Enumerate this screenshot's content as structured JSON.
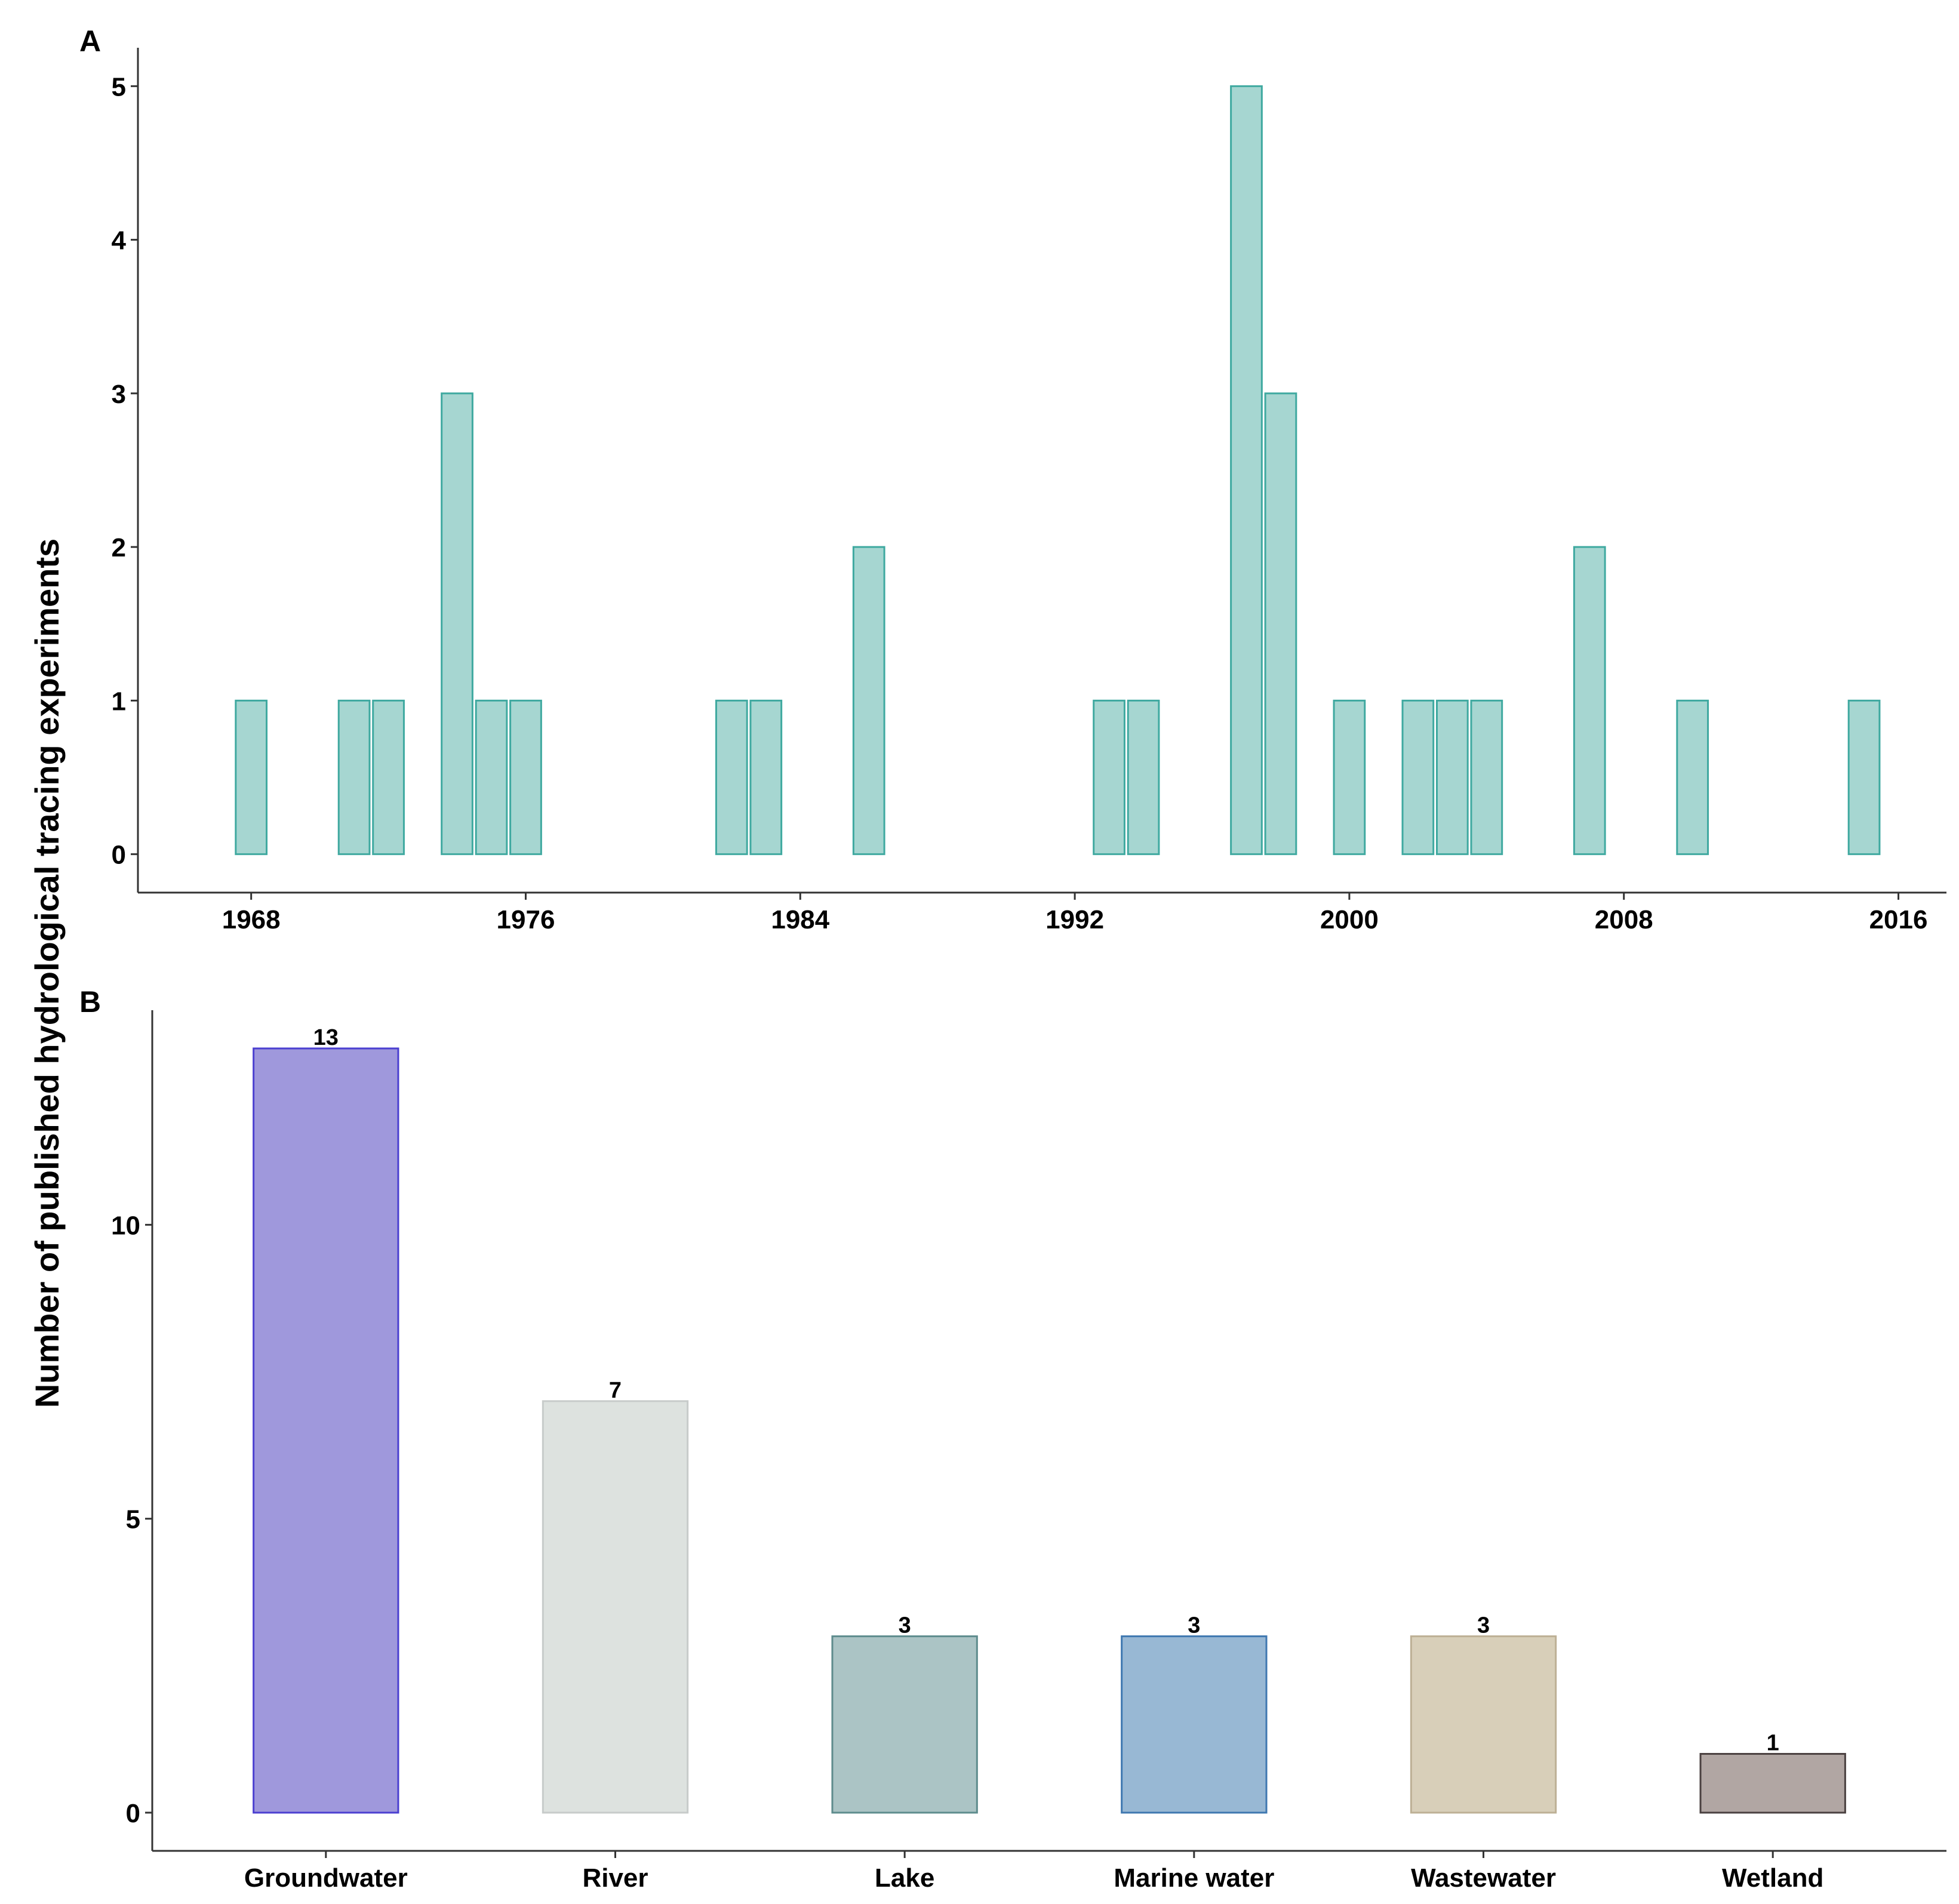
{
  "y_axis_title": "Number of published hydrological tracing experiments",
  "chart_data": [
    {
      "panel": "A",
      "type": "bar",
      "xlabel": "",
      "ylabel": "Number of published hydrological tracing experiments",
      "x": [
        1968,
        1971,
        1972,
        1974,
        1975,
        1976,
        1982,
        1983,
        1986,
        1993,
        1994,
        1997,
        1998,
        2000,
        2002,
        2003,
        2004,
        2007,
        2010,
        2015
      ],
      "values": [
        1,
        1,
        1,
        3,
        1,
        1,
        1,
        1,
        2,
        1,
        1,
        5,
        3,
        1,
        1,
        1,
        1,
        2,
        1,
        1
      ],
      "xlim": [
        1964.7,
        2017.4
      ],
      "ylim": [
        -0.25,
        5.25
      ],
      "x_ticks": [
        1968,
        1976,
        1984,
        1992,
        2000,
        2008,
        2016
      ],
      "y_ticks": [
        0,
        1,
        2,
        3,
        4,
        5
      ],
      "fill_color": "#a6d6d1",
      "stroke_color": "#3fa9a0",
      "grid": false
    },
    {
      "panel": "B",
      "type": "bar",
      "xlabel": "",
      "ylabel": "Number of published hydrological tracing experiments",
      "categories": [
        "Groundwater",
        "River",
        "Lake",
        "Marine water",
        "Wastewater",
        "Wetland"
      ],
      "values": [
        13,
        7,
        3,
        3,
        3,
        1
      ],
      "data_labels": [
        "13",
        "7",
        "3",
        "3",
        "3",
        "1"
      ],
      "ylim": [
        -0.65,
        13.65
      ],
      "y_ticks": [
        0,
        5,
        10
      ],
      "fill_colors": [
        "#9f98dc",
        "#dde2df",
        "#abc4c5",
        "#98b8d4",
        "#d8cfb9",
        "#b1a6a3"
      ],
      "stroke_colors": [
        "#4b3fd0",
        "#c7cbca",
        "#5e8c8d",
        "#3f78b0",
        "#bdb095",
        "#4a4040"
      ],
      "grid": false
    }
  ]
}
